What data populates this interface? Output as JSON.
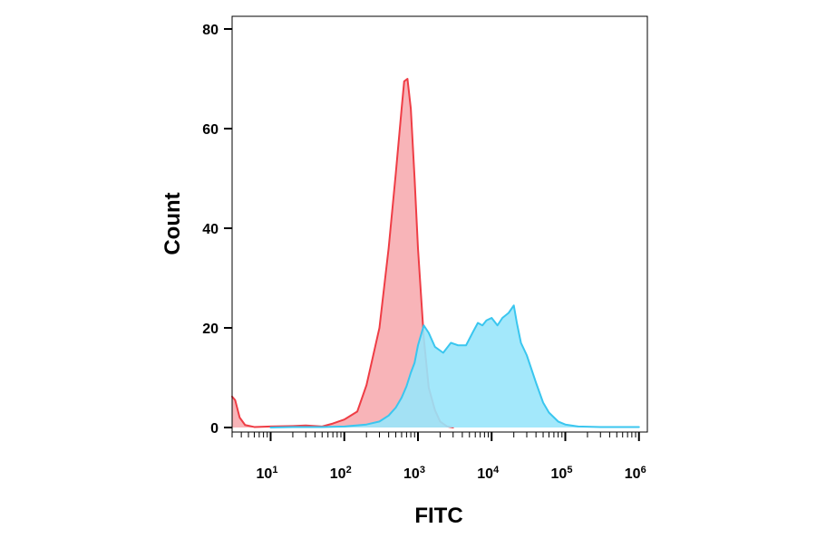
{
  "chart_data": {
    "type": "area",
    "title": "",
    "xlabel": "FITC",
    "ylabel": "Count",
    "x_scale": "log",
    "x_range": [
      3,
      1300000
    ],
    "y_range": [
      0,
      80
    ],
    "grid": false,
    "x_ticks": [
      {
        "value": 10,
        "base": "10",
        "exponent": "1"
      },
      {
        "value": 100,
        "base": "10",
        "exponent": "2"
      },
      {
        "value": 1000,
        "base": "10",
        "exponent": "3"
      },
      {
        "value": 10000,
        "base": "10",
        "exponent": "4"
      },
      {
        "value": 100000,
        "base": "10",
        "exponent": "5"
      },
      {
        "value": 1000000,
        "base": "10",
        "exponent": "6"
      }
    ],
    "y_ticks": [
      {
        "value": 0,
        "label": "0"
      },
      {
        "value": 20,
        "label": "20"
      },
      {
        "value": 40,
        "label": "40"
      },
      {
        "value": 60,
        "label": "60"
      },
      {
        "value": 80,
        "label": "80"
      }
    ],
    "series": [
      {
        "fill": "#f7a7ab",
        "stroke": "#ef3d45",
        "fill_opacity": 0.85,
        "points": [
          {
            "x": 3,
            "y": 6.2
          },
          {
            "x": 3.3,
            "y": 5.5
          },
          {
            "x": 3.8,
            "y": 2.0
          },
          {
            "x": 4.5,
            "y": 0.5
          },
          {
            "x": 6,
            "y": 0.1
          },
          {
            "x": 10,
            "y": 0.2
          },
          {
            "x": 20,
            "y": 0.3
          },
          {
            "x": 30,
            "y": 0.4
          },
          {
            "x": 50,
            "y": 0.2
          },
          {
            "x": 70,
            "y": 0.8
          },
          {
            "x": 100,
            "y": 1.6
          },
          {
            "x": 150,
            "y": 3.2
          },
          {
            "x": 200,
            "y": 8.5
          },
          {
            "x": 300,
            "y": 20.0
          },
          {
            "x": 400,
            "y": 36.0
          },
          {
            "x": 500,
            "y": 51.0
          },
          {
            "x": 600,
            "y": 64.0
          },
          {
            "x": 650,
            "y": 69.5
          },
          {
            "x": 720,
            "y": 70.0
          },
          {
            "x": 800,
            "y": 64.0
          },
          {
            "x": 900,
            "y": 50.0
          },
          {
            "x": 1000,
            "y": 36.0
          },
          {
            "x": 1200,
            "y": 18.0
          },
          {
            "x": 1400,
            "y": 8.0
          },
          {
            "x": 1700,
            "y": 3.5
          },
          {
            "x": 2000,
            "y": 1.2
          },
          {
            "x": 2500,
            "y": 0.2
          },
          {
            "x": 3000,
            "y": 0
          }
        ]
      },
      {
        "fill": "#99e6fb",
        "stroke": "#3ac6ef",
        "fill_opacity": 0.9,
        "points": [
          {
            "x": 10,
            "y": 0
          },
          {
            "x": 20,
            "y": 0.1
          },
          {
            "x": 50,
            "y": 0.1
          },
          {
            "x": 100,
            "y": 0.2
          },
          {
            "x": 200,
            "y": 0.6
          },
          {
            "x": 300,
            "y": 1.2
          },
          {
            "x": 400,
            "y": 2.4
          },
          {
            "x": 500,
            "y": 4.0
          },
          {
            "x": 600,
            "y": 6.0
          },
          {
            "x": 700,
            "y": 8.3
          },
          {
            "x": 800,
            "y": 11.0
          },
          {
            "x": 900,
            "y": 13.0
          },
          {
            "x": 1000,
            "y": 16.5
          },
          {
            "x": 1200,
            "y": 20.5
          },
          {
            "x": 1400,
            "y": 19.0
          },
          {
            "x": 1700,
            "y": 16.2
          },
          {
            "x": 2200,
            "y": 15.0
          },
          {
            "x": 2800,
            "y": 17.0
          },
          {
            "x": 3500,
            "y": 16.5
          },
          {
            "x": 4500,
            "y": 16.5
          },
          {
            "x": 5500,
            "y": 19.0
          },
          {
            "x": 6500,
            "y": 21.0
          },
          {
            "x": 7500,
            "y": 20.5
          },
          {
            "x": 8500,
            "y": 21.5
          },
          {
            "x": 10000,
            "y": 22.0
          },
          {
            "x": 12000,
            "y": 20.5
          },
          {
            "x": 14000,
            "y": 22.0
          },
          {
            "x": 17000,
            "y": 23.0
          },
          {
            "x": 20000,
            "y": 24.5
          },
          {
            "x": 22000,
            "y": 21.0
          },
          {
            "x": 25000,
            "y": 17.0
          },
          {
            "x": 30000,
            "y": 14.5
          },
          {
            "x": 40000,
            "y": 9.0
          },
          {
            "x": 50000,
            "y": 5.0
          },
          {
            "x": 60000,
            "y": 3.0
          },
          {
            "x": 80000,
            "y": 1.2
          },
          {
            "x": 100000,
            "y": 0.6
          },
          {
            "x": 150000,
            "y": 0.2
          },
          {
            "x": 300000,
            "y": 0.1
          },
          {
            "x": 1000000,
            "y": 0.1
          }
        ]
      }
    ]
  }
}
